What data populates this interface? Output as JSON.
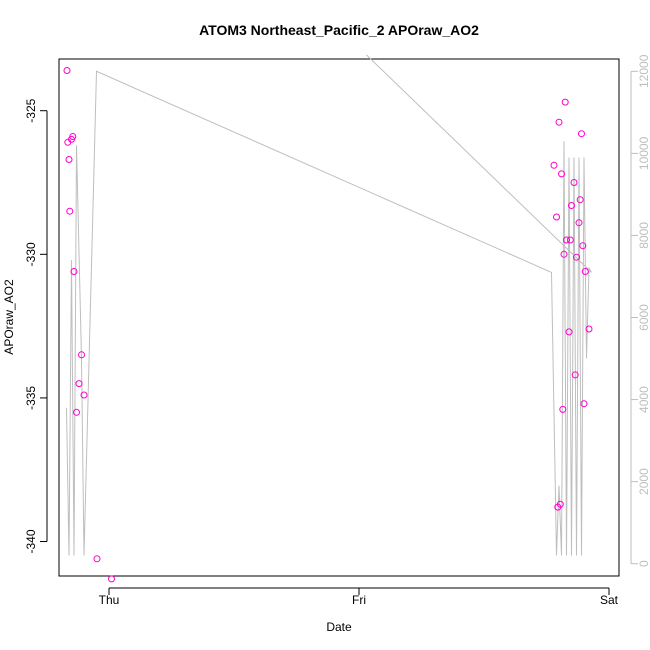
{
  "chart_data": {
    "type": "scatter",
    "title": "ATOM3 Northeast_Pacific_2 APOraw_AO2",
    "xlabel": "Date",
    "ylabel": "APOraw_AO2",
    "xlim": [
      -0.2,
      2.04
    ],
    "ylim": [
      -341.2,
      -323.2
    ],
    "y2lim": [
      -300,
      12300
    ],
    "x_ticks": [
      0,
      1,
      2
    ],
    "x_tick_labels": [
      "Thu",
      "Fri",
      "Sat"
    ],
    "y_ticks": [
      -340,
      -335,
      -330,
      -325
    ],
    "y_tick_labels": [
      "-340",
      "-335",
      "-330",
      "-325"
    ],
    "y2_ticks": [
      0,
      2000,
      4000,
      6000,
      8000,
      10000,
      12000
    ],
    "y2_tick_labels": [
      "0",
      "2000",
      "4000",
      "6000",
      "8000",
      "10000",
      "12000"
    ],
    "grid": false,
    "series": [
      {
        "type": "scatter",
        "axis": "left",
        "color": "#ff00cc",
        "marker": "circle-open",
        "points": [
          [
            -0.168,
            -323.6
          ],
          [
            -0.165,
            -326.1
          ],
          [
            -0.16,
            -326.7
          ],
          [
            -0.15,
            -326.0
          ],
          [
            -0.145,
            -325.9
          ],
          [
            -0.157,
            -328.5
          ],
          [
            -0.14,
            -330.6
          ],
          [
            -0.13,
            -335.5
          ],
          [
            -0.12,
            -334.5
          ],
          [
            -0.11,
            -333.5
          ],
          [
            -0.1,
            -334.9
          ],
          [
            -0.048,
            -340.6
          ],
          [
            0.01,
            -341.3
          ],
          [
            1.78,
            -326.9
          ],
          [
            1.79,
            -328.7
          ],
          [
            1.795,
            -338.8
          ],
          [
            1.8,
            -325.4
          ],
          [
            1.805,
            -338.7
          ],
          [
            1.81,
            -327.2
          ],
          [
            1.815,
            -335.4
          ],
          [
            1.82,
            -330.0
          ],
          [
            1.825,
            -324.7
          ],
          [
            1.83,
            -329.5
          ],
          [
            1.84,
            -332.7
          ],
          [
            1.845,
            -329.5
          ],
          [
            1.85,
            -328.3
          ],
          [
            1.86,
            -327.5
          ],
          [
            1.865,
            -334.2
          ],
          [
            1.87,
            -330.1
          ],
          [
            1.88,
            -328.9
          ],
          [
            1.885,
            -328.1
          ],
          [
            1.89,
            -325.8
          ],
          [
            1.895,
            -329.7
          ],
          [
            1.9,
            -335.2
          ],
          [
            1.905,
            -330.6
          ],
          [
            1.92,
            -332.6
          ]
        ]
      },
      {
        "type": "line",
        "axis": "right",
        "color": "#bebebe",
        "points": [
          [
            -0.17,
            3800
          ],
          [
            -0.16,
            200
          ],
          [
            -0.15,
            7400
          ],
          [
            -0.14,
            200
          ],
          [
            -0.13,
            10200
          ],
          [
            -0.11,
            5000
          ],
          [
            -0.1,
            200
          ],
          [
            -0.05,
            12000
          ],
          [
            1.77,
            7100
          ],
          [
            1.79,
            200
          ],
          [
            1.8,
            1900
          ],
          [
            1.81,
            200
          ],
          [
            1.82,
            10300
          ],
          [
            1.83,
            200
          ],
          [
            1.84,
            9900
          ],
          [
            1.85,
            200
          ],
          [
            1.86,
            9900
          ],
          [
            1.87,
            200
          ],
          [
            1.88,
            9900
          ],
          [
            1.89,
            200
          ],
          [
            1.9,
            9900
          ],
          [
            1.91,
            5000
          ],
          [
            1.92,
            7200
          ],
          [
            1.93,
            7100
          ],
          [
            1.03,
            12400
          ]
        ]
      }
    ]
  }
}
